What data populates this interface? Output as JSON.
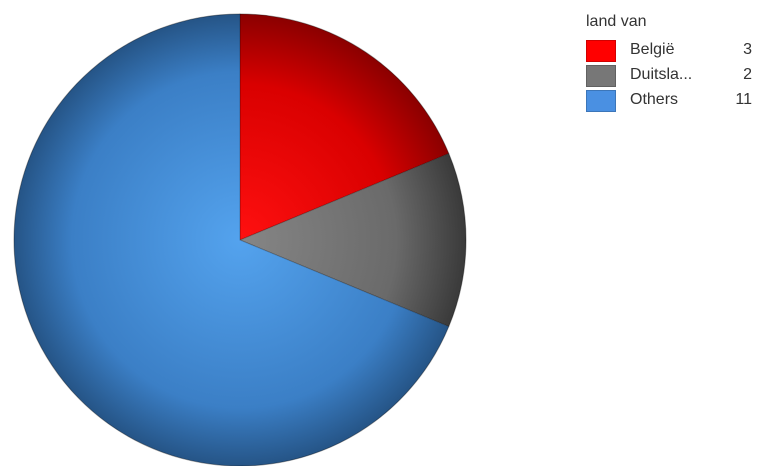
{
  "chart_data": {
    "type": "pie",
    "legend_title": "land van",
    "categories": [
      "België",
      "Duitsla...",
      "Others"
    ],
    "values": [
      3,
      2,
      11
    ],
    "colors": [
      "#ff0000",
      "#777777",
      "#4a90e2"
    ],
    "legend_position": "top-right",
    "start_angle_deg": 0,
    "direction": "clockwise"
  },
  "legend": {
    "title": "land van",
    "items": [
      {
        "label": "België",
        "value": "3",
        "color": "#ff0000"
      },
      {
        "label": "Duitsla...",
        "value": "2",
        "color": "#777777"
      },
      {
        "label": "Others",
        "value": "11",
        "color": "#4a90e2"
      }
    ]
  }
}
